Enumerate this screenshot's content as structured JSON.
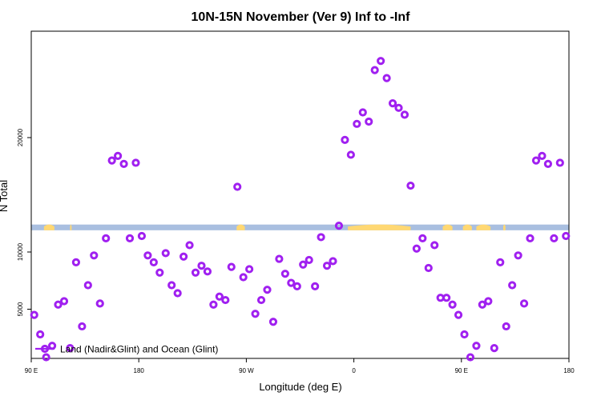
{
  "chart_data": {
    "type": "scatter",
    "title": "10N-15N November (Ver 9)   Inf to -Inf",
    "xlabel": "Longitude (deg E)",
    "ylabel": "N Total",
    "xlim": [
      90,
      450
    ],
    "ylim": [
      700,
      29300
    ],
    "x_ticks": [
      {
        "value": 90,
        "label": "90 E"
      },
      {
        "value": 162,
        "label": "180"
      },
      {
        "value": 234,
        "label": "90 W"
      },
      {
        "value": 306,
        "label": "0"
      },
      {
        "value": 378,
        "label": "90 E"
      },
      {
        "value": 450,
        "label": "180"
      }
    ],
    "y_ticks": [
      {
        "value": 5000,
        "label": "5000"
      },
      {
        "value": 10000,
        "label": "10000"
      },
      {
        "value": 20000,
        "label": "20000"
      }
    ],
    "grid": false,
    "legend": {
      "position": "bottom-left",
      "entries": [
        "Land (Nadir&Glint) and Ocean (Glint)"
      ]
    },
    "colors": {
      "points": "#a020f0",
      "ocean_band": "#a9bfe0",
      "land_band": "#ffd873"
    },
    "land_band": {
      "y_from": 11900,
      "y_to": 12400
    },
    "land_segments": [
      [
        98.5,
        105.5
      ],
      [
        116,
        117
      ],
      [
        227.5,
        233
      ],
      [
        302,
        344
      ],
      [
        365.5,
        372
      ],
      [
        379,
        385
      ],
      [
        388,
        397.5
      ],
      [
        406,
        407.5
      ]
    ],
    "series": [
      {
        "name": "Land (Nadir&Glint) and Ocean (Glint)",
        "x": [
          92,
          96,
          100,
          104,
          108,
          112,
          116,
          120,
          124,
          128,
          132,
          136,
          140,
          144,
          148,
          152,
          156,
          160,
          164,
          168,
          172,
          176,
          180,
          184,
          188,
          192,
          196,
          200,
          204,
          208,
          212,
          216,
          220,
          224,
          228,
          232,
          236,
          240,
          244,
          248,
          252,
          256,
          260,
          264,
          268,
          272,
          276,
          280,
          284,
          288,
          292,
          296,
          300,
          304,
          308,
          312,
          316,
          320,
          324,
          328,
          332,
          336,
          340,
          344,
          348,
          352,
          356,
          360,
          364,
          368,
          372,
          376,
          380,
          384,
          388,
          392,
          396,
          400,
          404,
          408,
          412,
          416,
          420,
          424,
          428,
          432,
          436,
          440,
          444,
          448
        ],
        "y": [
          4500,
          2800,
          800,
          1800,
          5400,
          5700,
          1600,
          9100,
          3500,
          7100,
          9700,
          5500,
          11200,
          18000,
          18400,
          17700,
          11200,
          17800,
          11400,
          9700,
          9100,
          8200,
          9900,
          7100,
          6400,
          9600,
          10600,
          8200,
          8800,
          8300,
          5400,
          6100,
          5800,
          8700,
          15700,
          7800,
          8500,
          4600,
          5800,
          6700,
          3900,
          9400,
          8100,
          7300,
          7000,
          8900,
          9300,
          7000,
          11300,
          8800,
          9200,
          12300,
          19800,
          18500,
          21200,
          22200,
          21400,
          25900,
          26700,
          25200,
          23000,
          22600,
          22000,
          15800,
          10300,
          11200,
          8600,
          10600,
          6000,
          6000,
          5400,
          4500,
          2800,
          800,
          1800,
          5400,
          5700,
          1600,
          9100,
          3500,
          7100,
          9700,
          5500,
          11200,
          18000,
          18400,
          17700,
          11200,
          17800,
          11400
        ]
      }
    ]
  }
}
